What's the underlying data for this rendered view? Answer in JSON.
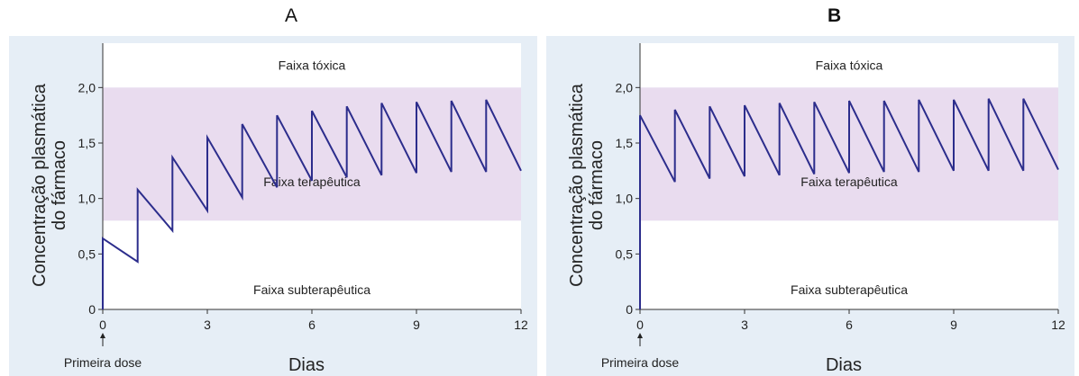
{
  "panel_labels": [
    "A",
    "B"
  ],
  "chart_data": [
    {
      "type": "line",
      "panel": "A",
      "xlabel": "Dias",
      "ylabel": "Concentração plasmática do fármaco",
      "xlim": [
        0,
        12
      ],
      "ylim": [
        0,
        2.4
      ],
      "xticks": [
        0,
        3,
        6,
        9,
        12
      ],
      "xtick_labels": [
        "0",
        "3",
        "6",
        "9",
        "12"
      ],
      "yticks": [
        0,
        0.5,
        1.0,
        1.5,
        2.0
      ],
      "ytick_labels": [
        "0",
        "0,5",
        "1,0",
        "1,5",
        "2,0"
      ],
      "bands": [
        {
          "label": "Faixa tóxica",
          "from": 2.0,
          "to": 2.4
        },
        {
          "label": "Faixa terapêutica",
          "from": 0.8,
          "to": 2.0
        },
        {
          "label": "Faixa subterapêutica",
          "from": 0,
          "to": 0.8
        }
      ],
      "annotation": "Primeira dose",
      "annotation_x": 0,
      "series": [
        {
          "x": [
            0,
            0,
            1,
            1,
            2,
            2,
            3,
            3,
            4,
            4,
            5,
            5,
            6,
            6,
            7,
            7,
            8,
            8,
            9,
            9,
            10,
            10,
            11,
            11,
            12
          ],
          "y": [
            0,
            0.64,
            0.43,
            1.08,
            0.71,
            1.37,
            0.89,
            1.55,
            1.01,
            1.67,
            1.1,
            1.75,
            1.16,
            1.79,
            1.19,
            1.83,
            1.21,
            1.86,
            1.23,
            1.87,
            1.24,
            1.88,
            1.24,
            1.89,
            1.25
          ]
        }
      ]
    },
    {
      "type": "line",
      "panel": "B",
      "xlabel": "Dias",
      "ylabel": "Concentração plasmática do fármaco",
      "xlim": [
        0,
        12
      ],
      "ylim": [
        0,
        2.4
      ],
      "xticks": [
        0,
        3,
        6,
        9,
        12
      ],
      "xtick_labels": [
        "0",
        "3",
        "6",
        "9",
        "12"
      ],
      "yticks": [
        0,
        0.5,
        1.0,
        1.5,
        2.0
      ],
      "ytick_labels": [
        "0",
        "0,5",
        "1,0",
        "1,5",
        "2,0"
      ],
      "bands": [
        {
          "label": "Faixa tóxica",
          "from": 2.0,
          "to": 2.4
        },
        {
          "label": "Faixa terapêutica",
          "from": 0.8,
          "to": 2.0
        },
        {
          "label": "Faixa subterapêutica",
          "from": 0,
          "to": 0.8
        }
      ],
      "annotation": "Primeira dose",
      "annotation_x": 0,
      "series": [
        {
          "x": [
            0,
            0,
            1,
            1,
            2,
            2,
            3,
            3,
            4,
            4,
            5,
            5,
            6,
            6,
            7,
            7,
            8,
            8,
            9,
            9,
            10,
            10,
            11,
            11,
            12
          ],
          "y": [
            0,
            1.75,
            1.15,
            1.8,
            1.18,
            1.83,
            1.2,
            1.84,
            1.21,
            1.86,
            1.22,
            1.87,
            1.23,
            1.88,
            1.24,
            1.88,
            1.24,
            1.89,
            1.25,
            1.89,
            1.25,
            1.9,
            1.25,
            1.9,
            1.26
          ]
        }
      ]
    }
  ],
  "colors": {
    "panel_background": "#e6eef6",
    "toxic_band": "#ffffff",
    "therapeutic_band": "#e9dcef",
    "subtherapeutic_band": "#ffffff",
    "line": "#2c2d8c"
  }
}
